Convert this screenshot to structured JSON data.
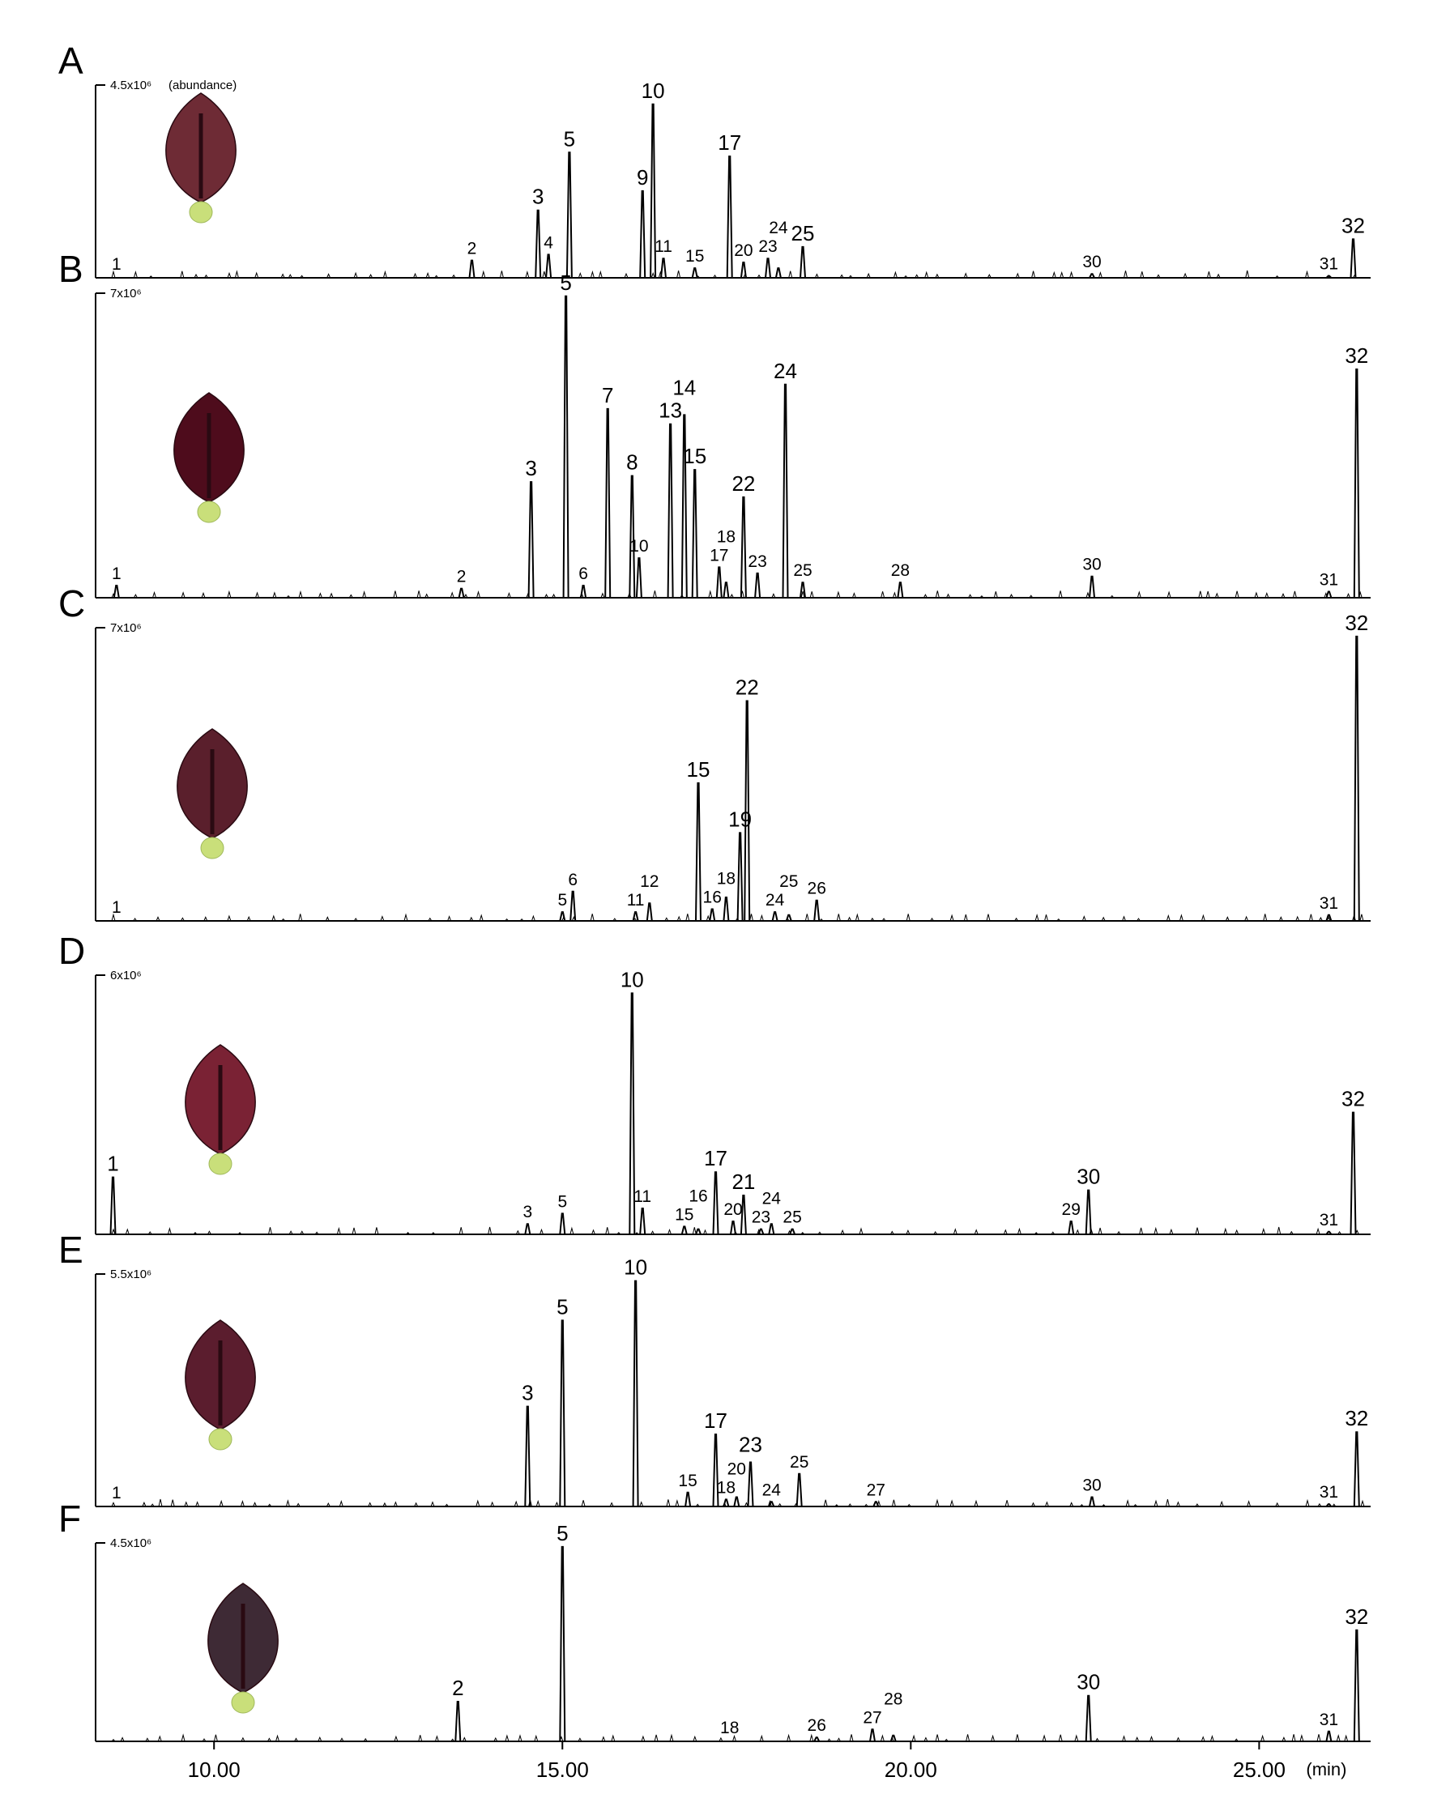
{
  "chart_data": {
    "type": "line",
    "x_unit": "(min)",
    "x_ticks": [
      "10.00",
      "15.00",
      "20.00",
      "25.00"
    ],
    "x_tick_values": [
      10,
      15,
      20,
      25
    ],
    "xlim": [
      8.3,
      26.6
    ],
    "panels": [
      {
        "letter": "A",
        "scale_label": "4.5x10⁶",
        "scale_note": "(abundance)",
        "flower_color": "#6e2b35",
        "peaks": [
          {
            "label": "1",
            "rt": 8.6,
            "height": 0.0
          },
          {
            "label": "2",
            "rt": 13.7,
            "height": 0.09
          },
          {
            "label": "3",
            "rt": 14.65,
            "height": 0.35
          },
          {
            "label": "4",
            "rt": 14.8,
            "height": 0.12
          },
          {
            "label": "5",
            "rt": 15.1,
            "height": 0.65
          },
          {
            "label": "9",
            "rt": 16.15,
            "height": 0.45
          },
          {
            "label": "10",
            "rt": 16.3,
            "height": 0.9
          },
          {
            "label": "11",
            "rt": 16.45,
            "height": 0.1
          },
          {
            "label": "15",
            "rt": 16.9,
            "height": 0.05
          },
          {
            "label": "17",
            "rt": 17.4,
            "height": 0.63
          },
          {
            "label": "20",
            "rt": 17.6,
            "height": 0.08
          },
          {
            "label": "23",
            "rt": 17.95,
            "height": 0.1
          },
          {
            "label": "24",
            "rt": 18.1,
            "height": 0.05
          },
          {
            "label": "25",
            "rt": 18.45,
            "height": 0.16
          },
          {
            "label": "30",
            "rt": 22.6,
            "height": 0.02
          },
          {
            "label": "31",
            "rt": 26.0,
            "height": 0.01
          },
          {
            "label": "32",
            "rt": 26.35,
            "height": 0.2
          }
        ]
      },
      {
        "letter": "B",
        "scale_label": "7x10⁶",
        "scale_note": "",
        "flower_color": "#4e0c1c",
        "peaks": [
          {
            "label": "1",
            "rt": 8.6,
            "height": 0.04
          },
          {
            "label": "2",
            "rt": 13.55,
            "height": 0.03
          },
          {
            "label": "3",
            "rt": 14.55,
            "height": 0.38
          },
          {
            "label": "5",
            "rt": 15.05,
            "height": 0.99
          },
          {
            "label": "6",
            "rt": 15.3,
            "height": 0.04
          },
          {
            "label": "7",
            "rt": 15.65,
            "height": 0.62
          },
          {
            "label": "8",
            "rt": 16.0,
            "height": 0.4
          },
          {
            "label": "10",
            "rt": 16.1,
            "height": 0.13
          },
          {
            "label": "13",
            "rt": 16.55,
            "height": 0.57
          },
          {
            "label": "14",
            "rt": 16.75,
            "height": 0.6
          },
          {
            "label": "15",
            "rt": 16.9,
            "height": 0.42
          },
          {
            "label": "17",
            "rt": 17.25,
            "height": 0.1
          },
          {
            "label": "18",
            "rt": 17.35,
            "height": 0.05
          },
          {
            "label": "22",
            "rt": 17.6,
            "height": 0.33
          },
          {
            "label": "23",
            "rt": 17.8,
            "height": 0.08
          },
          {
            "label": "24",
            "rt": 18.2,
            "height": 0.7
          },
          {
            "label": "25",
            "rt": 18.45,
            "height": 0.05
          },
          {
            "label": "28",
            "rt": 19.85,
            "height": 0.05
          },
          {
            "label": "30",
            "rt": 22.6,
            "height": 0.07
          },
          {
            "label": "31",
            "rt": 26.0,
            "height": 0.02
          },
          {
            "label": "32",
            "rt": 26.4,
            "height": 0.75
          }
        ]
      },
      {
        "letter": "C",
        "scale_label": "7x10⁶",
        "scale_note": "",
        "flower_color": "#5a1f2c",
        "peaks": [
          {
            "label": "1",
            "rt": 8.6,
            "height": 0.0
          },
          {
            "label": "5",
            "rt": 15.0,
            "height": 0.03
          },
          {
            "label": "6",
            "rt": 15.15,
            "height": 0.1
          },
          {
            "label": "11",
            "rt": 16.05,
            "height": 0.03
          },
          {
            "label": "12",
            "rt": 16.25,
            "height": 0.06
          },
          {
            "label": "15",
            "rt": 16.95,
            "height": 0.47
          },
          {
            "label": "16",
            "rt": 17.15,
            "height": 0.04
          },
          {
            "label": "18",
            "rt": 17.35,
            "height": 0.08
          },
          {
            "label": "19",
            "rt": 17.55,
            "height": 0.3
          },
          {
            "label": "22",
            "rt": 17.65,
            "height": 0.75
          },
          {
            "label": "24",
            "rt": 18.05,
            "height": 0.03
          },
          {
            "label": "25",
            "rt": 18.25,
            "height": 0.02
          },
          {
            "label": "26",
            "rt": 18.65,
            "height": 0.07
          },
          {
            "label": "31",
            "rt": 26.0,
            "height": 0.02
          },
          {
            "label": "32",
            "rt": 26.4,
            "height": 0.97
          }
        ]
      },
      {
        "letter": "D",
        "scale_label": "6x10⁶",
        "scale_note": "",
        "flower_color": "#7a2234",
        "peaks": [
          {
            "label": "1",
            "rt": 8.55,
            "height": 0.22
          },
          {
            "label": "3",
            "rt": 14.5,
            "height": 0.04
          },
          {
            "label": "5",
            "rt": 15.0,
            "height": 0.08
          },
          {
            "label": "10",
            "rt": 16.0,
            "height": 0.93
          },
          {
            "label": "11",
            "rt": 16.15,
            "height": 0.1
          },
          {
            "label": "15",
            "rt": 16.75,
            "height": 0.03
          },
          {
            "label": "16",
            "rt": 16.95,
            "height": 0.02
          },
          {
            "label": "17",
            "rt": 17.2,
            "height": 0.24
          },
          {
            "label": "20",
            "rt": 17.45,
            "height": 0.05
          },
          {
            "label": "21",
            "rt": 17.6,
            "height": 0.15
          },
          {
            "label": "23",
            "rt": 17.85,
            "height": 0.02
          },
          {
            "label": "24",
            "rt": 18.0,
            "height": 0.04
          },
          {
            "label": "25",
            "rt": 18.3,
            "height": 0.02
          },
          {
            "label": "29",
            "rt": 22.3,
            "height": 0.05
          },
          {
            "label": "30",
            "rt": 22.55,
            "height": 0.17
          },
          {
            "label": "31",
            "rt": 26.0,
            "height": 0.01
          },
          {
            "label": "32",
            "rt": 26.35,
            "height": 0.47
          }
        ]
      },
      {
        "letter": "E",
        "scale_label": "5.5x10⁶",
        "scale_note": "",
        "flower_color": "#5b1d2e",
        "peaks": [
          {
            "label": "1",
            "rt": 8.6,
            "height": 0.0
          },
          {
            "label": "3",
            "rt": 14.5,
            "height": 0.43
          },
          {
            "label": "5",
            "rt": 15.0,
            "height": 0.8
          },
          {
            "label": "10",
            "rt": 16.05,
            "height": 0.97
          },
          {
            "label": "15",
            "rt": 16.8,
            "height": 0.06
          },
          {
            "label": "17",
            "rt": 17.2,
            "height": 0.31
          },
          {
            "label": "18",
            "rt": 17.35,
            "height": 0.03
          },
          {
            "label": "20",
            "rt": 17.5,
            "height": 0.04
          },
          {
            "label": "23",
            "rt": 17.7,
            "height": 0.19
          },
          {
            "label": "24",
            "rt": 18.0,
            "height": 0.02
          },
          {
            "label": "25",
            "rt": 18.4,
            "height": 0.14
          },
          {
            "label": "27",
            "rt": 19.5,
            "height": 0.02
          },
          {
            "label": "30",
            "rt": 22.6,
            "height": 0.04
          },
          {
            "label": "31",
            "rt": 26.0,
            "height": 0.01
          },
          {
            "label": "32",
            "rt": 26.4,
            "height": 0.32
          }
        ]
      },
      {
        "letter": "F",
        "scale_label": "4.5x10⁶",
        "scale_note": "",
        "flower_color": "#3e2a35",
        "peaks": [
          {
            "label": "2",
            "rt": 13.5,
            "height": 0.2
          },
          {
            "label": "5",
            "rt": 15.0,
            "height": 0.98
          },
          {
            "label": "18",
            "rt": 17.4,
            "height": 0.0
          },
          {
            "label": "26",
            "rt": 18.65,
            "height": 0.02
          },
          {
            "label": "27",
            "rt": 19.45,
            "height": 0.06
          },
          {
            "label": "28",
            "rt": 19.75,
            "height": 0.03
          },
          {
            "label": "30",
            "rt": 22.55,
            "height": 0.23
          },
          {
            "label": "31",
            "rt": 26.0,
            "height": 0.05
          },
          {
            "label": "32",
            "rt": 26.4,
            "height": 0.56
          }
        ]
      }
    ]
  }
}
